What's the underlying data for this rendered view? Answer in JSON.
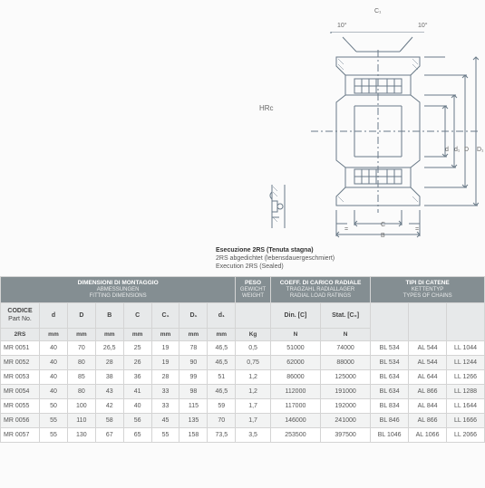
{
  "figure": {
    "caption_bold": "Esecuzione 2RS (Tenuta stagna)",
    "caption_line2": "2RS abgedichtet (lebensdauergeschmiert)",
    "caption_line3": "Execution 2RS (Sealed)",
    "labels": {
      "hrc": "HRc",
      "c1": "C₁",
      "ang": "10°",
      "d": "d",
      "d1": "d₁",
      "D": "D",
      "D1": "D₁",
      "eq": "=",
      "C": "C",
      "B": "B"
    }
  },
  "headers": {
    "group1": {
      "l1": "DIMENSIONI DI MONTAGGIO",
      "l2": "ABMESSUNGEN",
      "l3": "FITTING DIMENSIONS"
    },
    "group2": {
      "l1": "PESO",
      "l2": "GEWICHT",
      "l3": "WEIGHT"
    },
    "group3": {
      "l1": "COEFF. DI CARICO RADIALE",
      "l2": "TRAGZAHL RADIALLAGER",
      "l3": "RADIAL LOAD RATINGS"
    },
    "group4": {
      "l1": "TIPI DI CATENE",
      "l2": "KETTENTYP",
      "l3": "TYPES OF CHAINS"
    },
    "codice": "CODICE",
    "partno": "Part No.",
    "rs": "2RS",
    "cols": [
      "d",
      "D",
      "B",
      "C",
      "C₁",
      "D₁",
      "d₁"
    ],
    "din": "Din. [C]",
    "stat": "Stat. [C₀]",
    "units": {
      "mm": "mm",
      "kg": "Kg",
      "n": "N"
    }
  },
  "rows": [
    {
      "code": "MR 0051",
      "v": [
        "40",
        "70",
        "26,5",
        "25",
        "19",
        "78",
        "46,5"
      ],
      "w": "0,5",
      "din": "51000",
      "stat": "74000",
      "ch": [
        "BL 534",
        "AL 544",
        "LL 1044"
      ]
    },
    {
      "code": "MR 0052",
      "v": [
        "40",
        "80",
        "28",
        "26",
        "19",
        "90",
        "46,5"
      ],
      "w": "0,75",
      "din": "62000",
      "stat": "88000",
      "ch": [
        "BL 534",
        "AL 544",
        "LL 1244"
      ]
    },
    {
      "code": "MR 0053",
      "v": [
        "40",
        "85",
        "38",
        "36",
        "28",
        "99",
        "51"
      ],
      "w": "1,2",
      "din": "86000",
      "stat": "125000",
      "ch": [
        "BL 634",
        "AL 644",
        "LL 1266"
      ]
    },
    {
      "code": "MR 0054",
      "v": [
        "40",
        "80",
        "43",
        "41",
        "33",
        "98",
        "46,5"
      ],
      "w": "1,2",
      "din": "112000",
      "stat": "191000",
      "ch": [
        "BL 634",
        "AL 866",
        "LL 1288"
      ]
    },
    {
      "code": "MR 0055",
      "v": [
        "50",
        "100",
        "42",
        "40",
        "33",
        "115",
        "59"
      ],
      "w": "1,7",
      "din": "117000",
      "stat": "192000",
      "ch": [
        "BL 834",
        "AL 844",
        "LL 1644"
      ]
    },
    {
      "code": "MR 0056",
      "v": [
        "55",
        "110",
        "58",
        "56",
        "45",
        "135",
        "70"
      ],
      "w": "1,7",
      "din": "146000",
      "stat": "241000",
      "ch": [
        "BL 846",
        "AL 866",
        "LL 1666"
      ]
    },
    {
      "code": "MR 0057",
      "v": [
        "55",
        "130",
        "67",
        "65",
        "55",
        "158",
        "73,5"
      ],
      "w": "3,5",
      "din": "253500",
      "stat": "397500",
      "ch": [
        "BL 1046",
        "AL 1066",
        "LL 2066"
      ]
    }
  ],
  "style": {
    "header_bg": "#848e92",
    "header_fg": "#ffffff",
    "subhead_bg": "#e7e9ea",
    "row_even": "#f2f3f3",
    "row_odd": "#ffffff",
    "border": "#d4d4d4",
    "font_size_body": 7,
    "font_size_head": 6.5,
    "line_color": "#6a7a88"
  }
}
